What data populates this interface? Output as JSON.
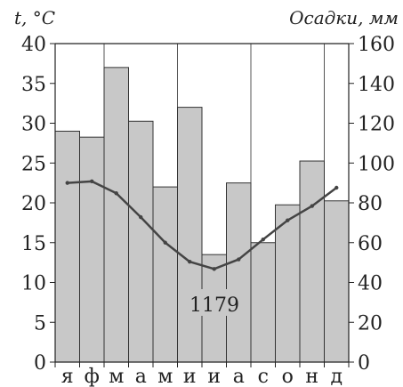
{
  "chart_data": {
    "type": "climatogram",
    "title": "",
    "left_axis": {
      "label": "t, °C",
      "range": [
        0,
        40
      ],
      "ticks": [
        "0",
        "5",
        "10",
        "15",
        "20",
        "25",
        "30",
        "35",
        "40"
      ]
    },
    "right_axis": {
      "label": "Осадки, мм",
      "range": [
        0,
        160
      ],
      "ticks": [
        "0",
        "20",
        "40",
        "60",
        "80",
        "100",
        "120",
        "140",
        "160"
      ]
    },
    "categories": [
      "я",
      "ф",
      "м",
      "а",
      "м",
      "и",
      "и",
      "а",
      "с",
      "о",
      "н",
      "д"
    ],
    "series": [
      {
        "kind": "bar",
        "axis": "right",
        "values": [
          116,
          113,
          148,
          121,
          88,
          128,
          54,
          90,
          60,
          79,
          101,
          81
        ],
        "color": "#c8c8c8"
      },
      {
        "kind": "line",
        "axis": "left",
        "values": [
          22.5,
          22.7,
          21.2,
          18.2,
          15.0,
          12.6,
          11.7,
          12.9,
          15.4,
          17.8,
          19.6,
          21.9
        ],
        "color": "#444444"
      }
    ],
    "annotation": "1179",
    "grid": true
  }
}
